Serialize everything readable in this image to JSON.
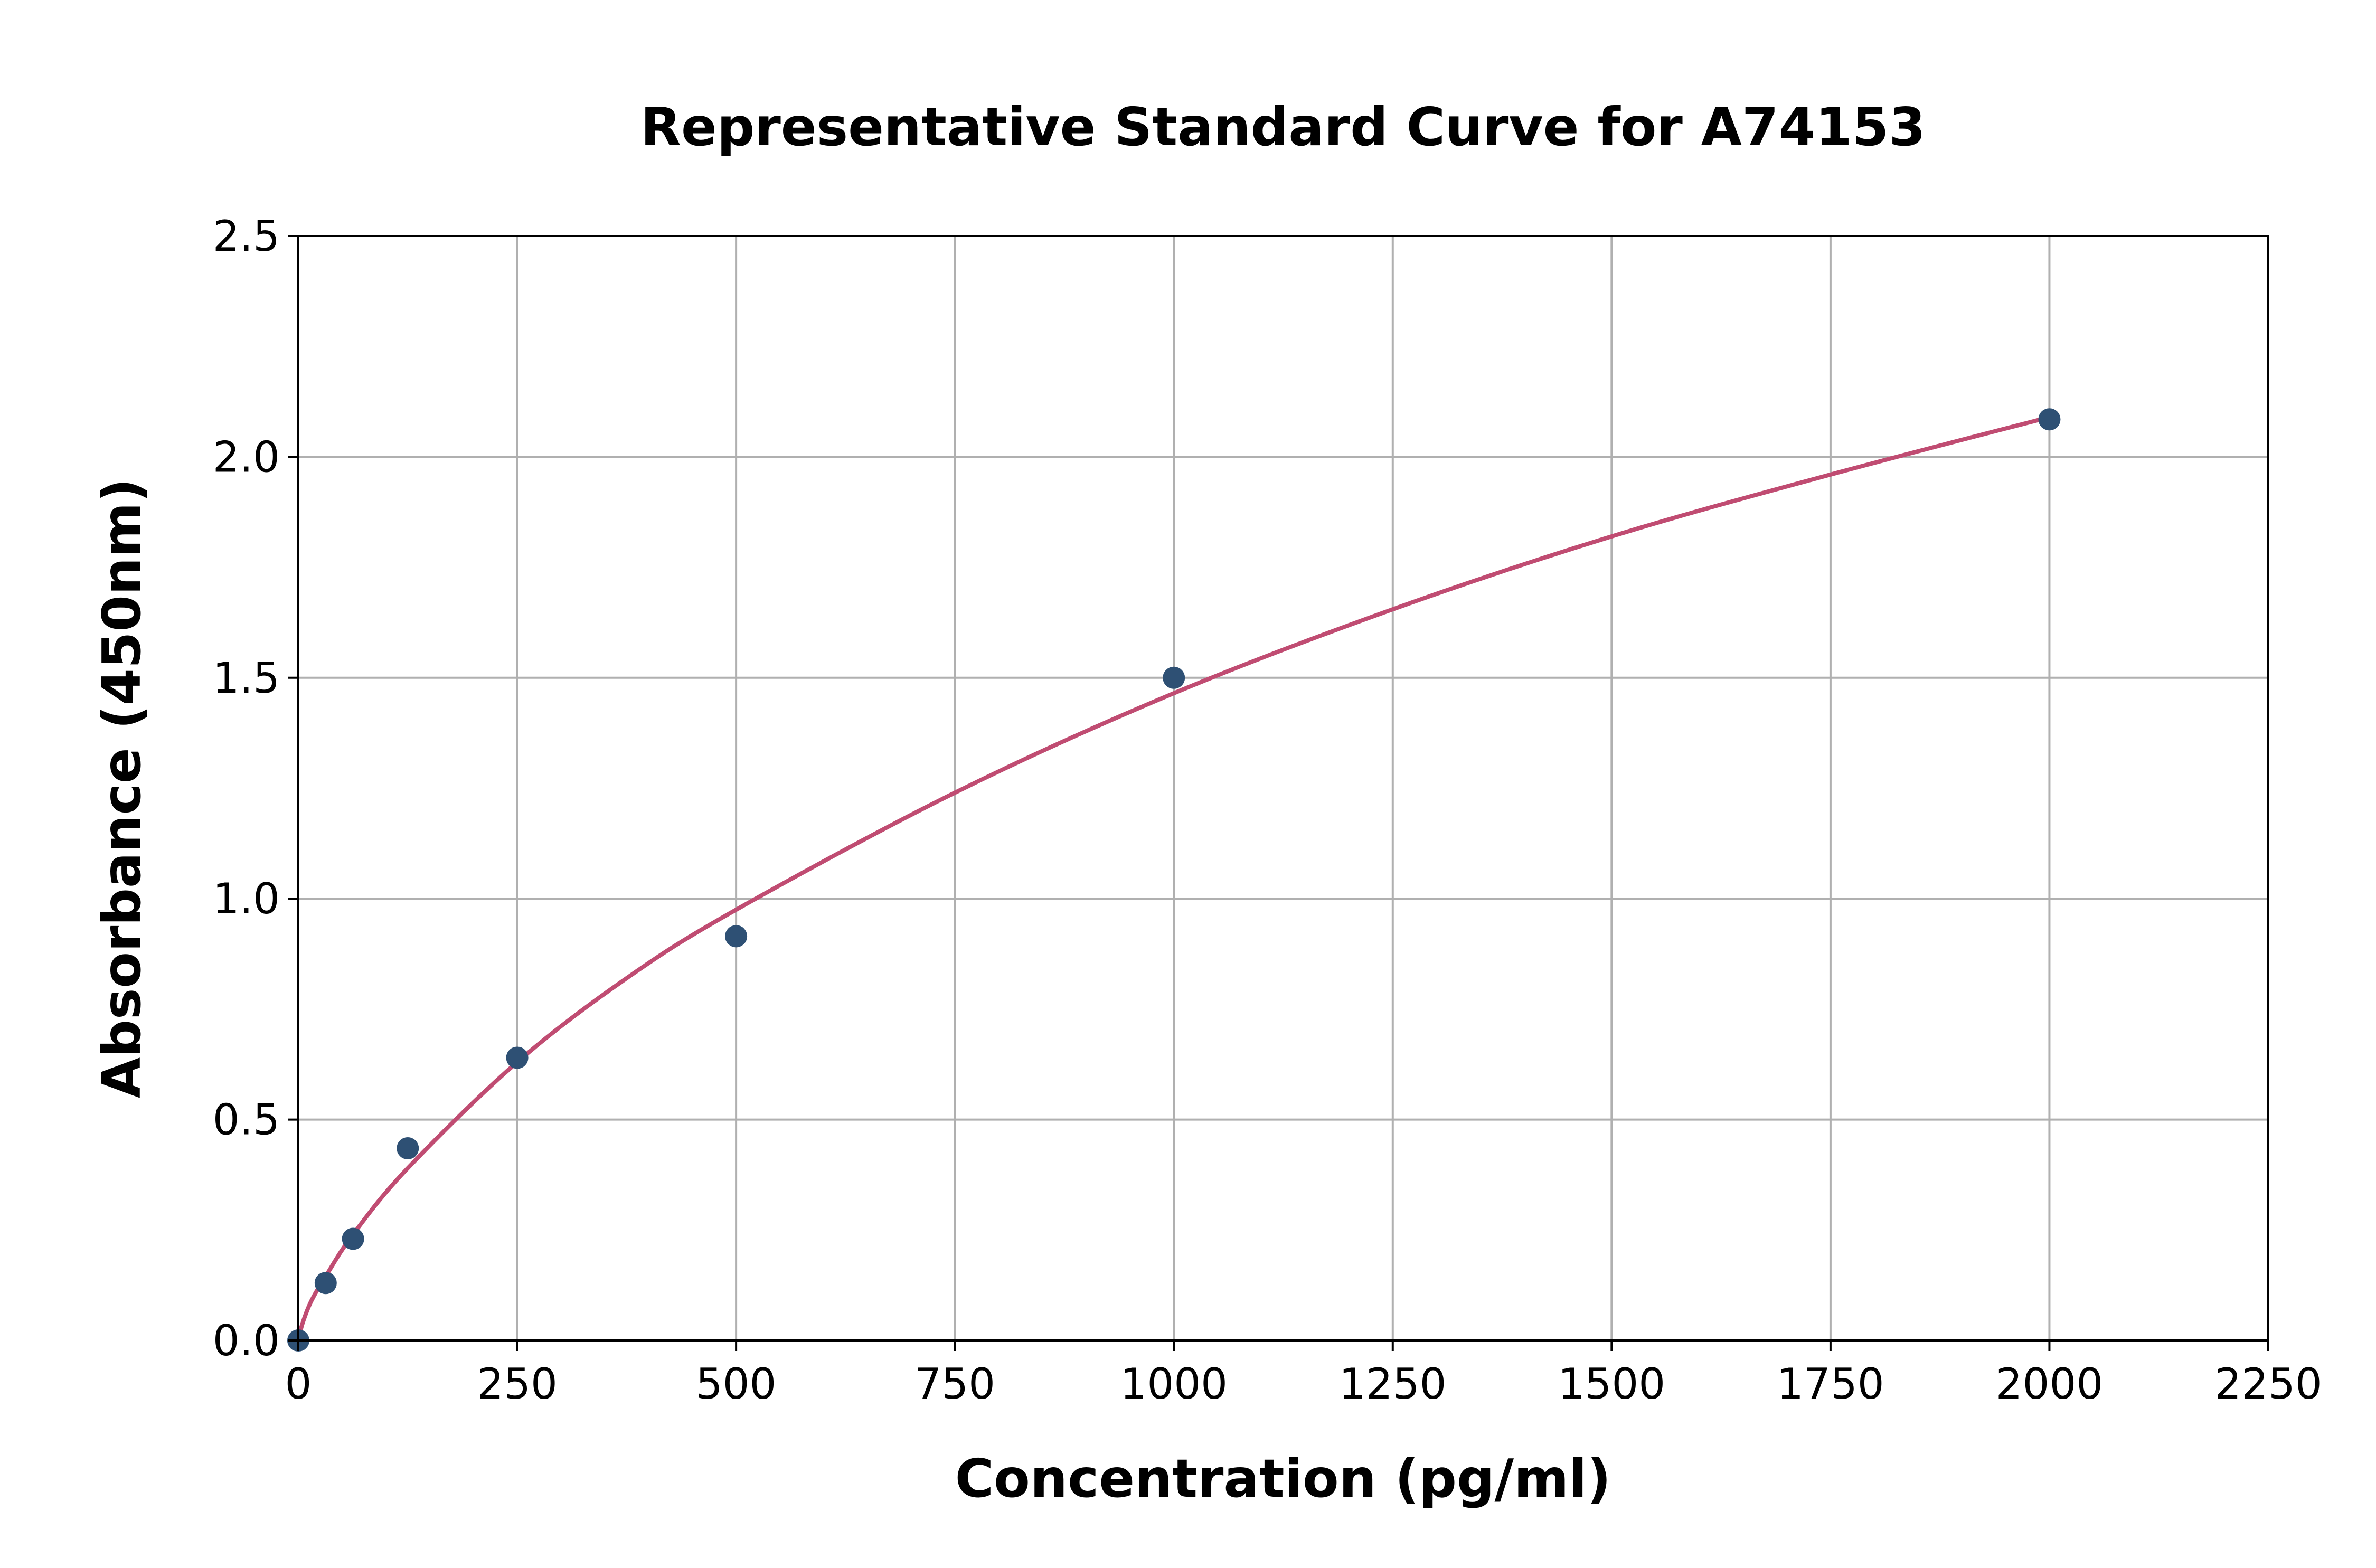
{
  "chart_data": {
    "type": "scatter",
    "title": "Representative Standard Curve for A74153",
    "xlabel": "Concentration (pg/ml)",
    "ylabel": "Absorbance (450nm)",
    "xlim": [
      0,
      2250
    ],
    "ylim": [
      0,
      2.5
    ],
    "grid": true,
    "xticks": [
      0,
      250,
      500,
      750,
      1000,
      1250,
      1500,
      1750,
      2000,
      2250
    ],
    "yticks": [
      "0.0",
      "0.5",
      "1.0",
      "1.5",
      "2.0",
      "2.5"
    ],
    "points": {
      "x": [
        0,
        31.25,
        62.5,
        125,
        250,
        500,
        1000,
        2000
      ],
      "y": [
        0.0,
        0.13,
        0.23,
        0.435,
        0.64,
        0.915,
        1.5,
        2.085
      ],
      "color": "#2e5074"
    },
    "fit_curve": {
      "x": [
        0,
        5,
        15,
        31.25,
        62.5,
        125,
        250,
        375,
        500,
        750,
        1000,
        1250,
        1500,
        1750,
        2000
      ],
      "y": [
        0,
        0.04,
        0.09,
        0.145,
        0.24,
        0.39,
        0.63,
        0.82,
        0.975,
        1.24,
        1.465,
        1.655,
        1.82,
        1.96,
        2.09
      ],
      "color": "#c04c72"
    }
  }
}
